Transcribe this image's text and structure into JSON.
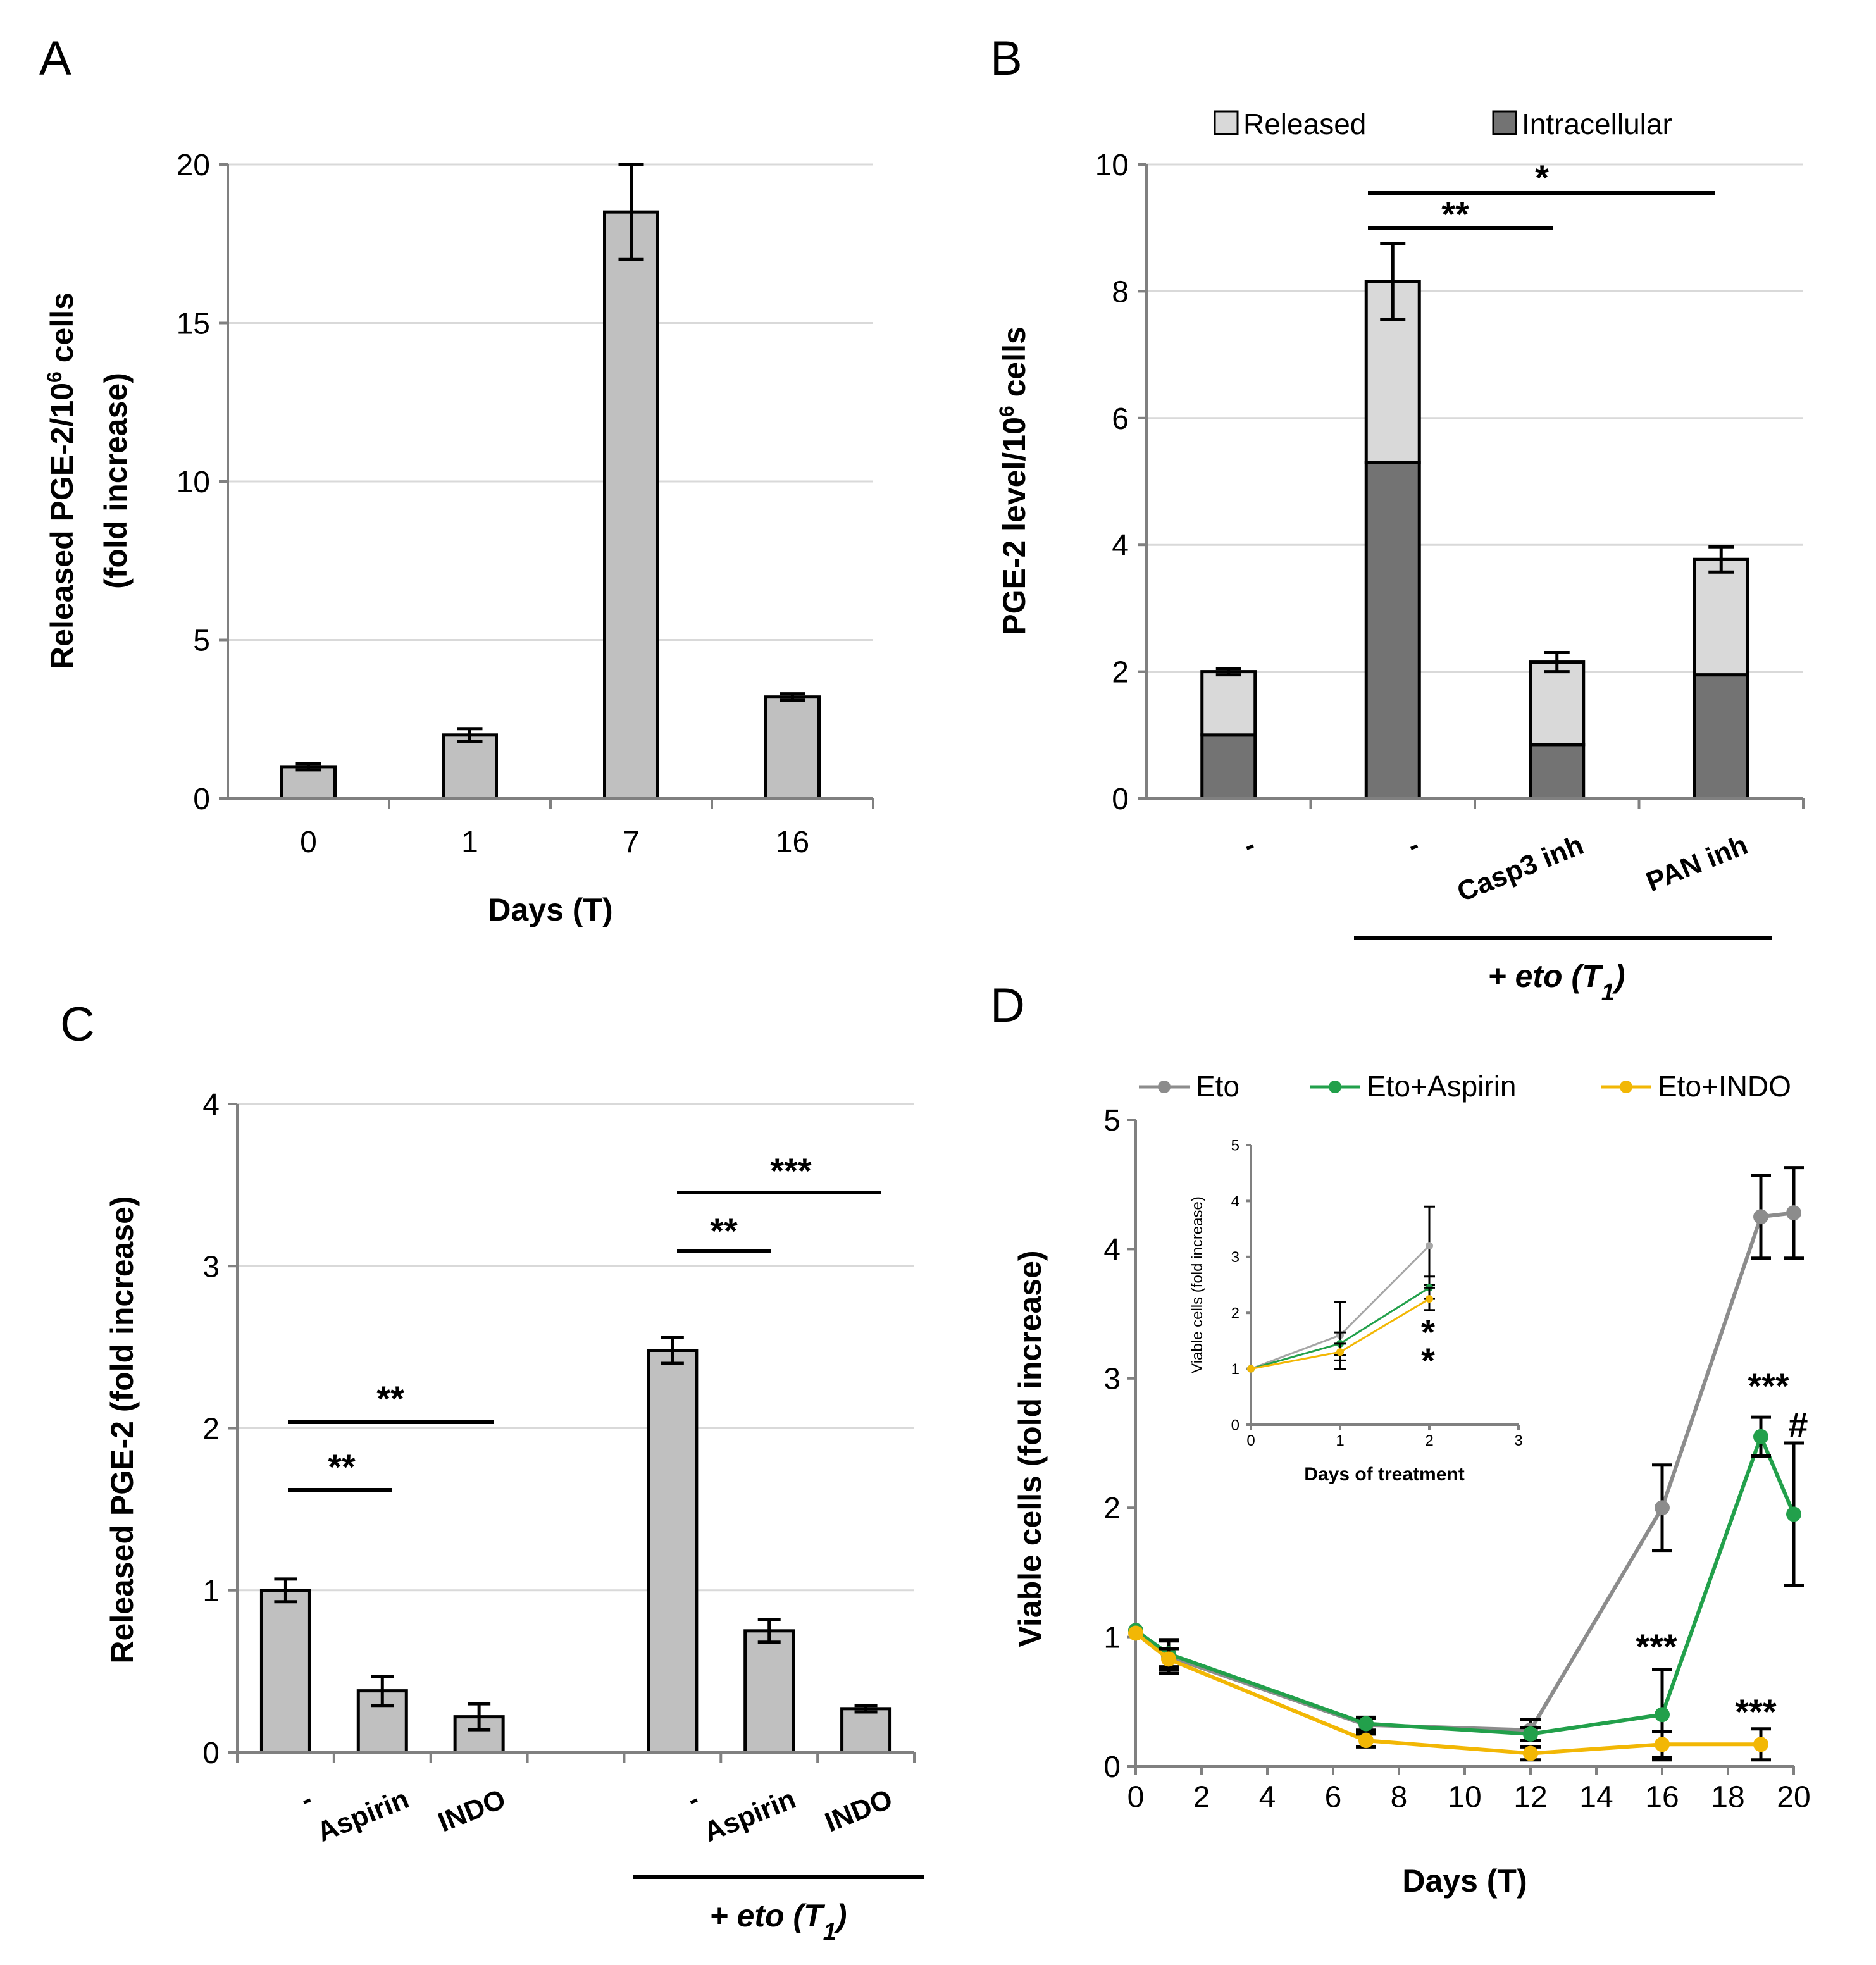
{
  "chart_data": [
    {
      "panel": "A",
      "type": "bar",
      "categories": [
        "0",
        "1",
        "7",
        "16"
      ],
      "values": [
        1.0,
        2.0,
        18.5,
        3.2
      ],
      "errors": [
        0.1,
        0.2,
        1.5,
        0.1
      ],
      "xlabel": "Days (T)",
      "ylabel_line1": "Released PGE-2/10",
      "ylabel_sup": "6",
      "ylabel_line1_end": " cells",
      "ylabel_line2": "(fold increase)",
      "ylim": [
        0,
        20
      ],
      "yticks": [
        "0",
        "5",
        "10",
        "15",
        "20"
      ]
    },
    {
      "panel": "B",
      "type": "bar",
      "stacked": true,
      "categories": [
        "-",
        "-",
        "Casp3 inh",
        "PAN inh"
      ],
      "series": [
        {
          "name": "Intracellular",
          "color": "#737373",
          "values": [
            1.0,
            5.3,
            0.85,
            1.95
          ]
        },
        {
          "name": "Released",
          "color": "#d9d9d9",
          "values": [
            1.0,
            2.85,
            1.3,
            1.82
          ]
        }
      ],
      "errors": [
        0.05,
        0.6,
        0.15,
        0.2
      ],
      "ylabel_pre": "PGE-2 level/10",
      "ylabel_sup": "6",
      "ylabel_post": " cells",
      "ylim": [
        0,
        10
      ],
      "yticks": [
        "0",
        "2",
        "4",
        "6",
        "8",
        "10"
      ],
      "group_label_main": "+ eto (T",
      "group_label_sub": "1",
      "group_label_end": ")",
      "significance": [
        {
          "label": "**",
          "from": 1,
          "to": 2
        },
        {
          "label": "*",
          "from": 1,
          "to": 3
        }
      ],
      "legend": [
        "Released",
        "Intracellular"
      ]
    },
    {
      "panel": "C",
      "type": "bar",
      "categories": [
        "-",
        "Aspirin",
        "INDO",
        "-",
        "Aspirin",
        "INDO"
      ],
      "values": [
        1.0,
        0.38,
        0.22,
        2.48,
        0.75,
        0.27
      ],
      "errors": [
        0.07,
        0.09,
        0.08,
        0.08,
        0.07,
        0.02
      ],
      "ylabel": "Released PGE-2 (fold increase)",
      "ylim": [
        0,
        4
      ],
      "yticks": [
        "0",
        "1",
        "2",
        "3",
        "4"
      ],
      "group_label_main": "+ eto (T",
      "group_label_sub": "1",
      "group_label_end": ")",
      "significance": [
        {
          "label": "**",
          "from": 0,
          "to": 1
        },
        {
          "label": "**",
          "from": 0,
          "to": 2
        },
        {
          "label": "**",
          "from": 3,
          "to": 4
        },
        {
          "label": "***",
          "from": 3,
          "to": 5
        }
      ]
    },
    {
      "panel": "D",
      "type": "line",
      "xlabel": "Days (T)",
      "ylabel": "Viable cells (fold increase)",
      "xlim": [
        0,
        20
      ],
      "ylim": [
        0,
        5
      ],
      "xticks": [
        "0",
        "2",
        "4",
        "6",
        "8",
        "10",
        "12",
        "14",
        "16",
        "18",
        "20"
      ],
      "yticks": [
        "0",
        "1",
        "2",
        "3",
        "4",
        "5"
      ],
      "series": [
        {
          "name": "Eto",
          "color": "#8c8c8c",
          "x": [
            0,
            1,
            7,
            12,
            16,
            19,
            20
          ],
          "y": [
            1.05,
            0.85,
            0.32,
            0.28,
            2.0,
            4.25,
            4.28
          ],
          "err": [
            0,
            0.13,
            0.05,
            0.08,
            0.33,
            0.32,
            0.35
          ]
        },
        {
          "name": "Eto+Aspirin",
          "color": "#22a04b",
          "x": [
            0,
            1,
            7,
            12,
            16,
            19,
            20
          ],
          "y": [
            1.05,
            0.87,
            0.33,
            0.25,
            0.4,
            2.55,
            1.95
          ],
          "err": [
            0,
            0.1,
            0.05,
            0.05,
            0.35,
            0.15,
            0.55
          ]
        },
        {
          "name": "Eto+INDO",
          "color": "#f2b705",
          "x": [
            0,
            1,
            7,
            12,
            16,
            19
          ],
          "y": [
            1.03,
            0.83,
            0.2,
            0.1,
            0.17,
            0.17
          ],
          "err": [
            0,
            0.08,
            0.05,
            0.05,
            0.1,
            0.12
          ]
        }
      ],
      "annotations": [
        "***",
        "#",
        "***",
        "***"
      ],
      "inset": {
        "xlabel": "Days of treatment",
        "ylabel": "Viable cells (fold increase)",
        "xlim": [
          0,
          3
        ],
        "ylim": [
          0,
          5
        ],
        "xticks": [
          "0",
          "1",
          "2",
          "3"
        ],
        "yticks": [
          "0",
          "1",
          "2",
          "3",
          "4",
          "5"
        ],
        "series": [
          {
            "name": "Eto",
            "color": "#a6a6a6",
            "x": [
              0,
              1,
              2
            ],
            "y": [
              1.0,
              1.6,
              3.2
            ],
            "err": [
              0,
              0.6,
              0.7
            ]
          },
          {
            "name": "Eto+Aspirin",
            "color": "#22a04b",
            "x": [
              0,
              1,
              2
            ],
            "y": [
              1.0,
              1.45,
              2.45
            ],
            "err": [
              0,
              0.2,
              0.2
            ]
          },
          {
            "name": "Eto+INDO",
            "color": "#f2b705",
            "x": [
              0,
              1,
              2
            ],
            "y": [
              1.0,
              1.3,
              2.25
            ],
            "err": [
              0,
              0.15,
              0.2
            ]
          }
        ],
        "annotations": [
          "*",
          "*"
        ]
      }
    }
  ],
  "panels": {
    "a": "A",
    "b": "B",
    "c": "C",
    "d": "D"
  }
}
